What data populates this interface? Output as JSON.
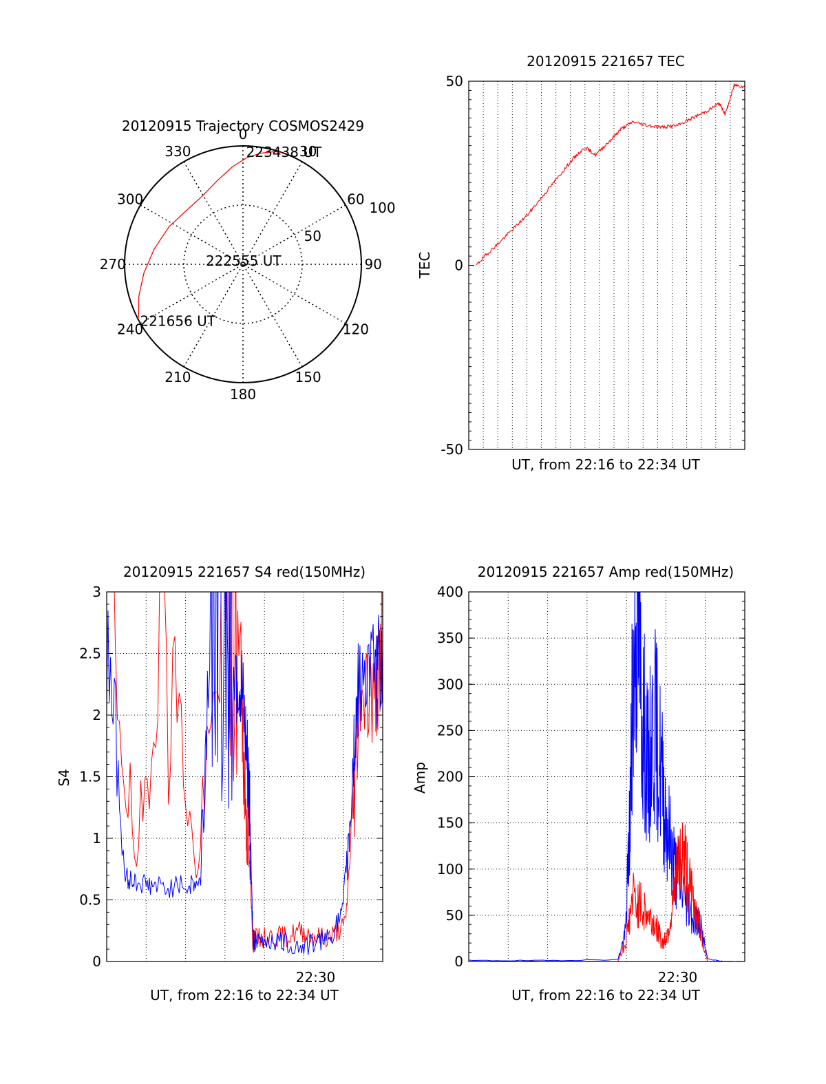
{
  "chart_data": [
    {
      "type": "polar-trajectory",
      "title": "20120915 Trajectory COSMOS2429",
      "azimuth_labels": [
        "0",
        "30",
        "60",
        "90",
        "120",
        "150",
        "180",
        "210",
        "240",
        "270",
        "300",
        "330"
      ],
      "radial_labels": [
        "50",
        "100"
      ],
      "zenith_range": [
        0,
        100
      ],
      "grid": true,
      "series": [
        {
          "color": "#ff0000",
          "points": [
            {
              "az": 243,
              "zen": 99
            },
            {
              "az": 253,
              "zen": 92
            },
            {
              "az": 265,
              "zen": 84
            },
            {
              "az": 280,
              "zen": 76
            },
            {
              "az": 297,
              "zen": 70
            },
            {
              "az": 313,
              "zen": 66
            },
            {
              "az": 329,
              "zen": 67
            },
            {
              "az": 343,
              "zen": 74
            },
            {
              "az": 354,
              "zen": 83
            },
            {
              "az": 2,
              "zen": 90
            },
            {
              "az": 9,
              "zen": 95
            },
            {
              "az": 16,
              "zen": 99
            },
            {
              "az": 19,
              "zen": 100
            }
          ]
        }
      ],
      "annotations": [
        {
          "text": "223438 UT",
          "az": 20,
          "zen": 101
        },
        {
          "text": "222555 UT",
          "az": 9,
          "zen": 3
        },
        {
          "text": "221656 UT",
          "az": 229,
          "zen": 73
        }
      ]
    },
    {
      "type": "line",
      "title": "20120915 221657 TEC",
      "xlabel": "UT, from 22:16 to 22:34 UT",
      "ylabel": "TEC",
      "xlim": [
        0,
        18.5
      ],
      "ylim": [
        -50,
        50
      ],
      "yticks": [
        "-50",
        "0",
        "50"
      ],
      "grid": "vertical-dotted",
      "series": [
        {
          "color": "#ff0000",
          "x": [
            0.5,
            1.2,
            2.0,
            3.0,
            4.0,
            5.0,
            6.0,
            7.0,
            7.8,
            8.5,
            9.5,
            10.2,
            11.0,
            12.0,
            13.0,
            14.0,
            15.0,
            16.0,
            16.8,
            17.2,
            17.8,
            18.5
          ],
          "y": [
            0,
            3,
            6,
            10,
            14,
            19,
            24,
            29,
            32,
            30,
            34,
            37,
            39,
            38,
            37.5,
            38,
            40,
            42,
            44,
            41,
            49,
            48.5
          ]
        }
      ]
    },
    {
      "type": "line",
      "title": "20120915 221657 S4 red(150MHz)",
      "xlabel": "UT, from 22:16 to 22:34 UT",
      "ylabel": "S4",
      "xlim": [
        0,
        18.5
      ],
      "ylim": [
        0,
        3
      ],
      "yticks": [
        "0",
        "0.5",
        "1",
        "1.5",
        "2",
        "2.5",
        "3"
      ],
      "xtick": {
        "label": "22:30",
        "value": 14
      },
      "grid": "dotted",
      "series": [
        {
          "color": "#ff0000",
          "x": [
            0,
            2,
            4,
            6,
            8,
            9,
            9.2,
            9.5,
            9.8,
            10,
            11,
            12,
            13,
            14,
            15,
            16,
            16.5,
            17,
            18,
            18.5
          ],
          "y": [
            3,
            0.7,
            3,
            0.65,
            3,
            2.4,
            1.5,
            1.0,
            0.15,
            0.18,
            0.2,
            0.2,
            0.25,
            0.2,
            0.2,
            0.3,
            1.2,
            2.3,
            2.1,
            2.6
          ]
        },
        {
          "color": "#0000ff",
          "x": [
            0,
            1.2,
            2,
            3,
            4,
            5.5,
            6.3,
            7,
            8,
            8.6,
            9,
            9.4,
            9.6,
            9.8,
            10,
            11,
            12,
            13,
            14,
            15,
            15.8,
            16.2,
            16.6,
            17,
            18,
            18.5
          ],
          "y": [
            3,
            0.68,
            0.65,
            0.62,
            0.6,
            0.62,
            0.65,
            3,
            2.8,
            2.4,
            2.2,
            1.6,
            1.2,
            0.2,
            0.15,
            0.18,
            0.15,
            0.12,
            0.15,
            0.2,
            0.4,
            1.0,
            1.8,
            2.4,
            2.3,
            2.5
          ]
        }
      ]
    },
    {
      "type": "line",
      "title": "20120915 221657 Amp red(150MHz)",
      "xlabel": "UT, from 22:16 to 22:34 UT",
      "ylabel": "Amp",
      "xlim": [
        0,
        18.5
      ],
      "ylim": [
        0,
        400
      ],
      "yticks": [
        "0",
        "50",
        "100",
        "150",
        "200",
        "250",
        "300",
        "350",
        "400"
      ],
      "xtick": {
        "label": "22:30",
        "value": 14
      },
      "grid": "dotted",
      "series": [
        {
          "color": "#0000ff",
          "x": [
            0,
            5,
            10,
            10.5,
            10.8,
            11,
            11.3,
            11.6,
            12,
            12.4,
            12.8,
            13.2,
            13.6,
            14,
            14.5,
            15,
            15.5,
            16,
            17,
            18.5
          ],
          "y": [
            1,
            1,
            2,
            30,
            150,
            300,
            380,
            280,
            200,
            260,
            220,
            160,
            120,
            90,
            70,
            50,
            40,
            3,
            0,
            0
          ]
        },
        {
          "color": "#ff0000",
          "x": [
            0,
            10,
            10.5,
            11,
            11.5,
            12,
            12.5,
            13,
            13.3,
            13.7,
            14,
            14.4,
            14.8,
            15.2,
            15.6,
            16,
            17,
            18.5
          ],
          "y": [
            0,
            0,
            20,
            70,
            60,
            50,
            40,
            20,
            30,
            60,
            100,
            120,
            80,
            60,
            30,
            0,
            0,
            0
          ]
        }
      ]
    }
  ]
}
